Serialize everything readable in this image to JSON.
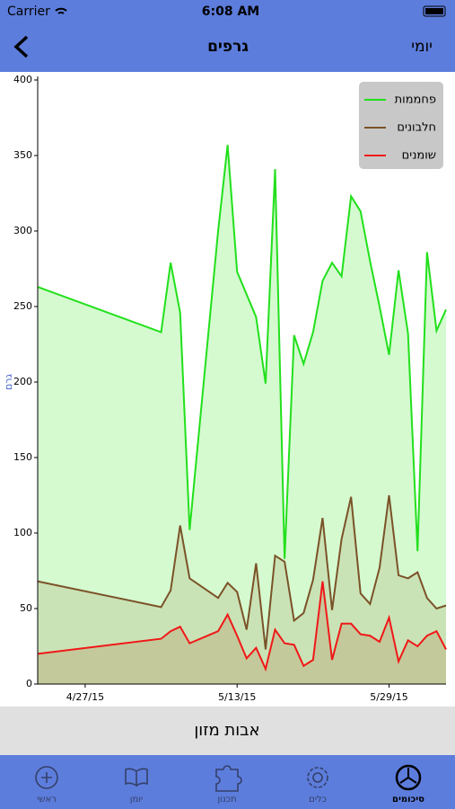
{
  "status_bar": {
    "carrier": "Carrier",
    "time": "6:08 AM"
  },
  "nav_bar": {
    "title": "גרפים",
    "right_button": "יומי"
  },
  "chart_data": {
    "type": "area",
    "y_label": "גרם",
    "x": [
      "4/22/15",
      "5/5/15",
      "5/6/15",
      "5/7/15",
      "5/8/15",
      "5/11/15",
      "5/12/15",
      "5/13/15",
      "5/14/15",
      "5/15/15",
      "5/16/15",
      "5/17/15",
      "5/18/15",
      "5/19/15",
      "5/20/15",
      "5/21/15",
      "5/22/15",
      "5/23/15",
      "5/24/15",
      "5/25/15",
      "5/26/15",
      "5/27/15",
      "5/28/15",
      "5/29/15",
      "5/30/15",
      "5/31/15",
      "6/1/15",
      "6/2/15",
      "6/3/15",
      "6/4/15"
    ],
    "series": [
      {
        "name": "פחממות",
        "color": "#22e01c",
        "fill": "#d5fad0",
        "values": [
          263,
          233,
          279,
          246,
          102,
          300,
          357,
          273,
          258,
          243,
          199,
          341,
          83,
          231,
          212,
          233,
          267,
          279,
          270,
          323,
          313,
          280,
          250,
          218,
          274,
          232,
          88,
          286,
          234,
          248
        ]
      },
      {
        "name": "חלבונים",
        "color": "#7b5228",
        "fill": "rgba(150,110,50,0.16)",
        "values": [
          68,
          51,
          62,
          105,
          70,
          57,
          67,
          61,
          36,
          80,
          23,
          85,
          81,
          42,
          47,
          69,
          110,
          49,
          96,
          124,
          60,
          53,
          77,
          125,
          72,
          70,
          74,
          57,
          50,
          52
        ]
      },
      {
        "name": "שומנים",
        "color": "#f01818",
        "fill": "rgba(175,100,50,0.2)",
        "values": [
          20,
          30,
          35,
          38,
          27,
          35,
          46,
          32,
          17,
          24,
          10,
          36,
          27,
          26,
          12,
          16,
          68,
          16,
          40,
          40,
          33,
          32,
          28,
          44,
          15,
          29,
          25,
          32,
          35,
          23
        ]
      }
    ],
    "xlim": [
      "4/22/15",
      "6/4/15"
    ],
    "xticks": [
      "4/27/15",
      "5/13/15",
      "5/29/15"
    ],
    "ylim": [
      0,
      400
    ],
    "yticks": [
      0,
      50,
      100,
      150,
      200,
      250,
      300,
      350,
      400
    ],
    "legend": "top-right"
  },
  "button": {
    "label": "אבות מזון"
  },
  "tab_bar": {
    "tabs": [
      {
        "label": "ראשי"
      },
      {
        "label": "יומן"
      },
      {
        "label": "תכנון"
      },
      {
        "label": "כלים"
      },
      {
        "label": "סיכומים"
      }
    ]
  }
}
